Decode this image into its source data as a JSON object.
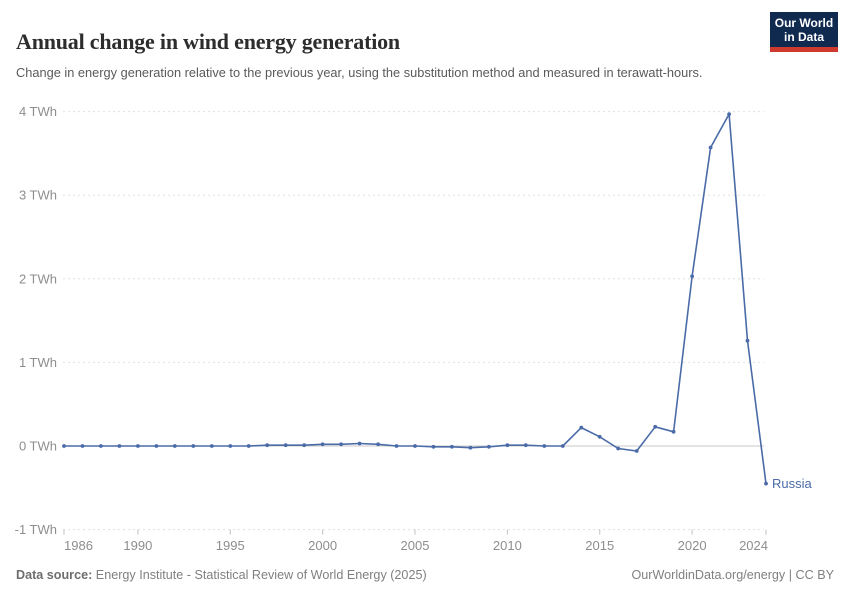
{
  "header": {
    "title": "Annual change in wind energy generation",
    "subtitle": "Change in energy generation relative to the previous year, using the substitution method and measured in terawatt-hours."
  },
  "logo": {
    "line1": "Our World",
    "line2": "in Data",
    "bg_color": "#10294f",
    "accent_color": "#cf3a2e"
  },
  "chart_data": {
    "type": "line",
    "title": "Annual change in wind energy generation",
    "unit": "TWh",
    "entity": "Russia",
    "line_color": "#4a6ba8",
    "grid": true,
    "legend_position": "end-of-line",
    "ylim": [
      -1,
      4
    ],
    "xlim": [
      1986,
      2024
    ],
    "y_ticks": [
      {
        "value": -1,
        "label": "-1 TWh"
      },
      {
        "value": 0,
        "label": "0 TWh"
      },
      {
        "value": 1,
        "label": "1 TWh"
      },
      {
        "value": 2,
        "label": "2 TWh"
      },
      {
        "value": 3,
        "label": "3 TWh"
      },
      {
        "value": 4,
        "label": "4 TWh"
      }
    ],
    "x_ticks": [
      1986,
      1990,
      1995,
      2000,
      2005,
      2010,
      2015,
      2020,
      2024
    ],
    "x": [
      1986,
      1987,
      1988,
      1989,
      1990,
      1991,
      1992,
      1993,
      1994,
      1995,
      1996,
      1997,
      1998,
      1999,
      2000,
      2001,
      2002,
      2003,
      2004,
      2005,
      2006,
      2007,
      2008,
      2009,
      2010,
      2011,
      2012,
      2013,
      2014,
      2015,
      2016,
      2017,
      2018,
      2019,
      2020,
      2021,
      2022,
      2023,
      2024
    ],
    "series": [
      {
        "name": "Russia",
        "values": [
          0,
          0,
          0,
          0,
          0,
          0,
          0,
          0,
          0,
          0,
          0,
          0.01,
          0.01,
          0.01,
          0.02,
          0.02,
          0.03,
          0.02,
          0,
          0,
          -0.01,
          -0.01,
          -0.02,
          -0.01,
          0.01,
          0.01,
          0,
          0,
          0.22,
          0.11,
          -0.03,
          -0.06,
          0.23,
          0.17,
          2.03,
          3.57,
          3.97,
          1.26,
          -0.45
        ]
      }
    ]
  },
  "footer": {
    "source_label": "Data source:",
    "source": "Energy Institute - Statistical Review of World Energy (2025)",
    "credit": "OurWorldinData.org/energy | CC BY"
  }
}
